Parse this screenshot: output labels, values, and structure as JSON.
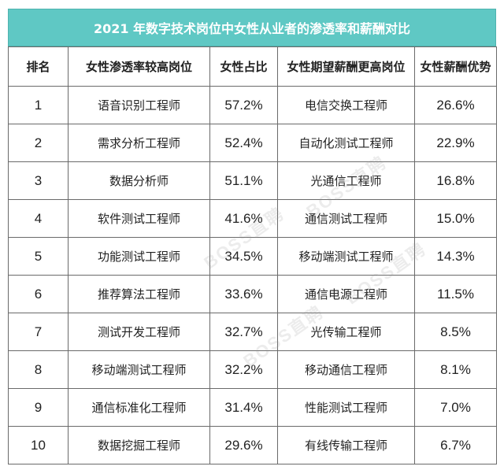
{
  "title": "2021 年数字技术岗位中女性从业者的渗透率和薪酬对比",
  "headers": [
    "排名",
    "女性渗透率较高岗位",
    "女性占比",
    "女性期望薪酬更高岗位",
    "女性薪酬优势"
  ],
  "rows": [
    [
      "1",
      "语音识别工程师",
      "57.2%",
      "电信交换工程师",
      "26.6%"
    ],
    [
      "2",
      "需求分析工程师",
      "52.4%",
      "自动化测试工程师",
      "22.9%"
    ],
    [
      "3",
      "数据分析师",
      "51.1%",
      "光通信工程师",
      "16.8%"
    ],
    [
      "4",
      "软件测试工程师",
      "41.6%",
      "通信测试工程师",
      "15.0%"
    ],
    [
      "5",
      "功能测试工程师",
      "34.5%",
      "移动端测试工程师",
      "14.3%"
    ],
    [
      "6",
      "推荐算法工程师",
      "33.6%",
      "通信电源工程师",
      "11.5%"
    ],
    [
      "7",
      "测试开发工程师",
      "32.7%",
      "光传输工程师",
      "8.5%"
    ],
    [
      "8",
      "移动端测试工程师",
      "32.2%",
      "移动通信工程师",
      "8.1%"
    ],
    [
      "9",
      "通信标准化工程师",
      "31.4%",
      "性能测试工程师",
      "7.0%"
    ],
    [
      "10",
      "数据挖掘工程师",
      "29.6%",
      "有线传输工程师",
      "6.7%"
    ]
  ],
  "watermark": "BOSS直聘"
}
